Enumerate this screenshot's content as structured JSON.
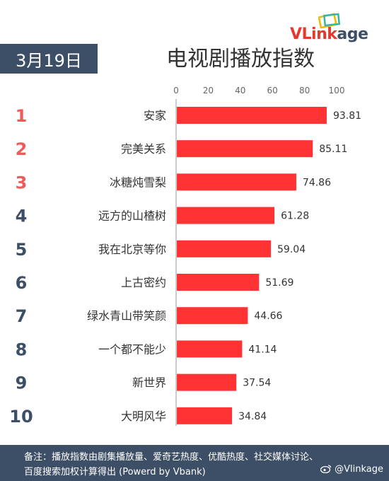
{
  "logo": {
    "text_v": "VL",
    "text_i": "i",
    "text_nk": "nk",
    "text_age": "age"
  },
  "date": "3月19日",
  "title": "电视剧播放指数",
  "footer": {
    "line1": "备注：播放指数由剧集播放量、爱奇艺热度、优酷热度、社交媒体讨论、",
    "line2": "百度搜索加权计算得出 (Powerd by Vbank)",
    "watermark": "@Vlinkage"
  },
  "colors": {
    "bar": "#ff3333",
    "rank_top": "#f15a5a",
    "rank_other": "#3d4f66",
    "banner": "#3d4f66"
  },
  "chart_data": {
    "type": "bar",
    "orientation": "horizontal",
    "xlim": [
      0,
      100
    ],
    "xticks": [
      0,
      20,
      40,
      60,
      80,
      100
    ],
    "ranks": [
      "1",
      "2",
      "3",
      "4",
      "5",
      "6",
      "7",
      "8",
      "9",
      "10"
    ],
    "categories": [
      "安家",
      "完美关系",
      "冰糖炖雪梨",
      "远方的山楂树",
      "我在北京等你",
      "上古密约",
      "绿水青山带笑颜",
      "一个都不能少",
      "新世界",
      "大明风华"
    ],
    "values": [
      93.81,
      85.11,
      74.86,
      61.28,
      59.04,
      51.69,
      44.66,
      41.14,
      37.54,
      34.84
    ],
    "value_labels": [
      "93.81",
      "85.11",
      "74.86",
      "61.28",
      "59.04",
      "51.69",
      "44.66",
      "41.14",
      "37.54",
      "34.84"
    ]
  }
}
